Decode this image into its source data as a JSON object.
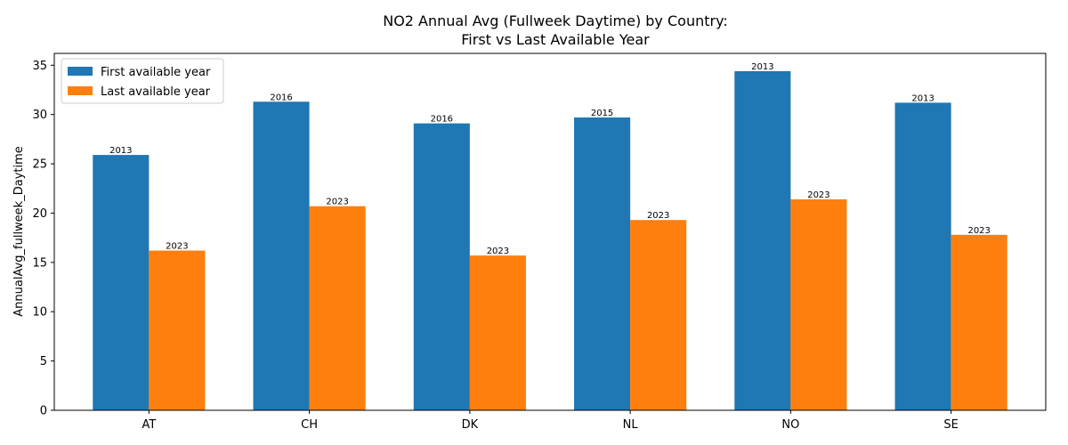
{
  "chart_data": {
    "type": "bar",
    "title_line1": "NO2 Annual Avg (Fullweek Daytime) by Country:",
    "title_line2": "First vs Last Available Year",
    "xlabel": "",
    "ylabel": "AnnualAvg_fullweek_Daytime",
    "ylim": [
      0,
      36.2
    ],
    "yticks": [
      0,
      5,
      10,
      15,
      20,
      25,
      30,
      35
    ],
    "categories": [
      "AT",
      "CH",
      "DK",
      "NL",
      "NO",
      "SE"
    ],
    "series": [
      {
        "name": "First available year",
        "color": "#1f77b4",
        "values": [
          25.9,
          31.3,
          29.1,
          29.7,
          34.4,
          31.2
        ],
        "labels": [
          "2013",
          "2016",
          "2016",
          "2015",
          "2013",
          "2013"
        ]
      },
      {
        "name": "Last available year",
        "color": "#ff7f0e",
        "values": [
          16.2,
          20.7,
          15.7,
          19.3,
          21.4,
          17.8
        ],
        "labels": [
          "2023",
          "2023",
          "2023",
          "2023",
          "2023",
          "2023"
        ]
      }
    ],
    "legend_position": "upper-left",
    "grid": false
  }
}
